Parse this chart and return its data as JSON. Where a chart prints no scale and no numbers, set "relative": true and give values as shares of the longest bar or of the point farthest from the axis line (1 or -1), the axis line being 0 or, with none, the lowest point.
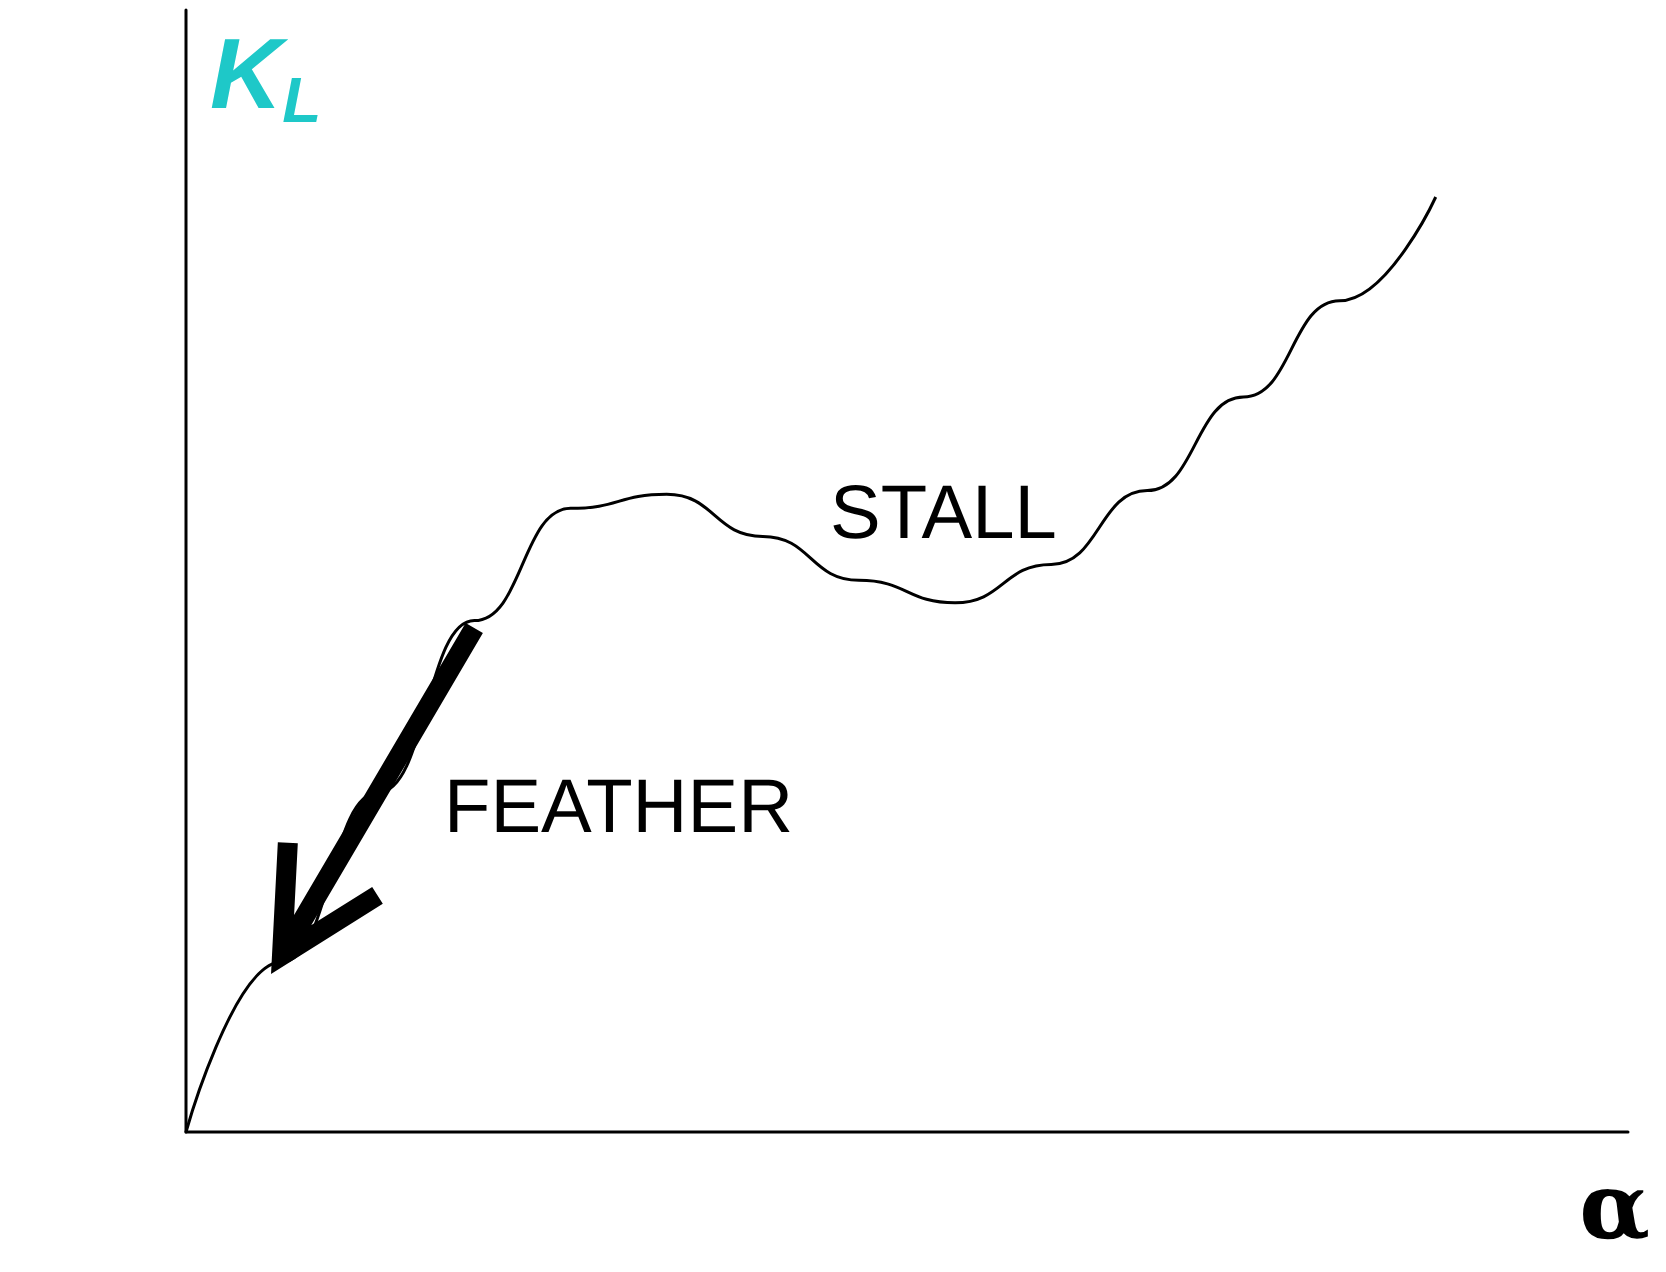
{
  "chart_data": {
    "type": "line",
    "relative": true,
    "ylabel": "K$_{L}$",
    "xlabel": "α",
    "categories": [
      null,
      null,
      null,
      null,
      null,
      null,
      null,
      null,
      null,
      null,
      null,
      null,
      null,
      null,
      null,
      null
    ],
    "series": [
      {
        "color": "#000000",
        "values": [
          0,
          0.182,
          0.363,
          0.547,
          0.667,
          0.682,
          0.637,
          0.59,
          0.566,
          0.607,
          0.686,
          0.786,
          0.889,
          1,
          null,
          null
        ]
      }
    ],
    "annotations": [
      "STALL",
      "FEATHER"
    ],
    "marker": "none",
    "line_style": "solid"
  }
}
